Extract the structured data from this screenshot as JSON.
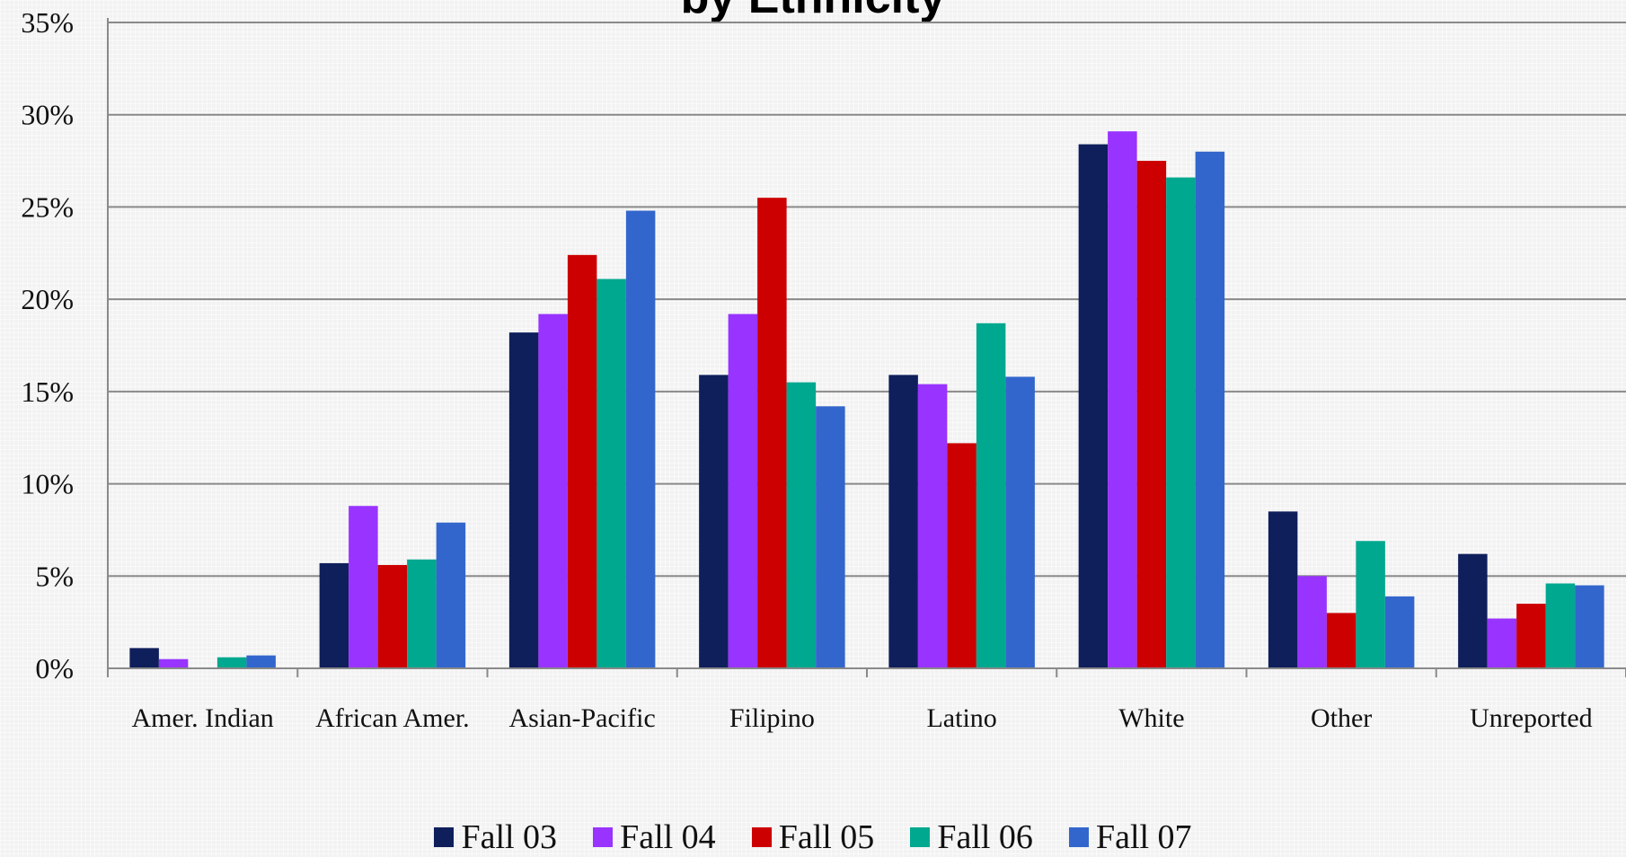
{
  "chart_data": {
    "type": "bar",
    "title": "by Ethnicity",
    "xlabel": "",
    "ylabel": "",
    "ylim": [
      0,
      35
    ],
    "y_ticks": [
      "0%",
      "5%",
      "10%",
      "15%",
      "20%",
      "25%",
      "30%",
      "35%"
    ],
    "y_tick_values": [
      0,
      5,
      10,
      15,
      20,
      25,
      30,
      35
    ],
    "grid": true,
    "legend_position": "bottom",
    "categories": [
      "Amer. Indian",
      "African Amer.",
      "Asian-Pacific",
      "Filipino",
      "Latino",
      "White",
      "Other",
      "Unreported"
    ],
    "series": [
      {
        "name": "Fall 03",
        "color": "#0f1f5c",
        "values": [
          1.1,
          5.7,
          18.2,
          15.9,
          15.9,
          28.4,
          8.5,
          6.2
        ]
      },
      {
        "name": "Fall 04",
        "color": "#9933ff",
        "values": [
          0.5,
          8.8,
          19.2,
          19.2,
          15.4,
          29.1,
          5.0,
          2.7
        ]
      },
      {
        "name": "Fall 05",
        "color": "#cc0000",
        "values": [
          0.0,
          5.6,
          22.4,
          25.5,
          12.2,
          27.5,
          3.0,
          3.5
        ]
      },
      {
        "name": "Fall 06",
        "color": "#00a88f",
        "values": [
          0.6,
          5.9,
          21.1,
          15.5,
          18.7,
          26.6,
          6.9,
          4.6
        ]
      },
      {
        "name": "Fall 07",
        "color": "#3366cc",
        "values": [
          0.7,
          7.9,
          24.8,
          14.2,
          15.8,
          28.0,
          3.9,
          4.5
        ]
      }
    ]
  }
}
